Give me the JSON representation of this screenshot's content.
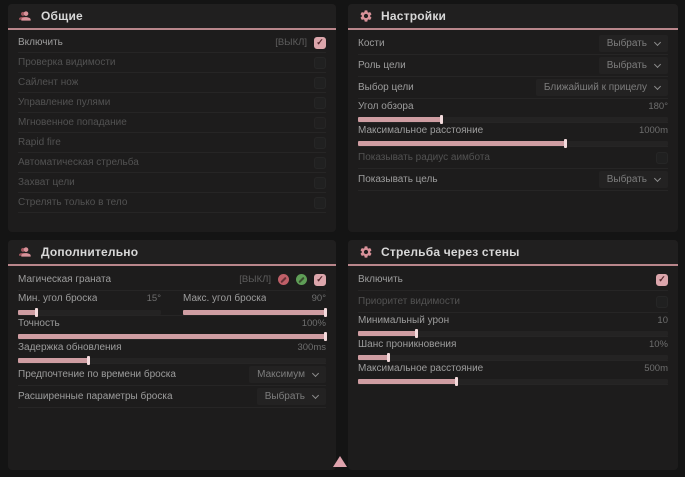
{
  "theme": {
    "accent": "#cf9da2",
    "accent_light": "#f3dadc",
    "header_underline": "#b9868b",
    "panel_bg": "#1d1c1c",
    "page_bg": "#141414",
    "checkbox_checked": "#dca6ac",
    "badge_red": "#c05f68",
    "badge_green": "#5f9e57"
  },
  "icons": {
    "general": "person-icon",
    "settings": "gear-icon",
    "additional": "person-icon",
    "walls": "gear-icon",
    "grenade_badges": [
      "red-circle-icon",
      "green-circle-icon"
    ],
    "bottom": "cursor-triangle-icon"
  },
  "panels": {
    "general": {
      "title": "Общие",
      "rows": [
        {
          "label": "Включить",
          "tag": "[ВЫКЛ]",
          "checked": true
        },
        {
          "label": "Проверка видимости",
          "checked": false
        },
        {
          "label": "Сайлент нож",
          "checked": false
        },
        {
          "label": "Управление пулями",
          "checked": false
        },
        {
          "label": "Мгновенное попадание",
          "checked": false
        },
        {
          "label": "Rapid fire",
          "checked": false
        },
        {
          "label": "Автоматическая стрельба",
          "checked": false
        },
        {
          "label": "Захват цели",
          "checked": false
        },
        {
          "label": "Стрелять только в тело",
          "checked": false
        }
      ]
    },
    "settings": {
      "title": "Настройки",
      "rows": [
        {
          "label": "Кости",
          "dropdown": "Выбрать"
        },
        {
          "label": "Роль цели",
          "dropdown": "Выбрать"
        },
        {
          "label": "Выбор цели",
          "dropdown": "Ближайший к прицелу"
        },
        {
          "label": "Угол обзора",
          "value": "180°",
          "fill_pct": 27
        },
        {
          "label": "Максимальное расстояние",
          "value": "1000m",
          "fill_pct": 67
        },
        {
          "label": "Показывать радиус аимбота",
          "checked": false
        },
        {
          "label": "Показывать цель",
          "dropdown": "Выбрать"
        }
      ]
    },
    "additional": {
      "title": "Дополнительно",
      "rows": [
        {
          "label": "Магическая граната",
          "tag": "[ВЫКЛ]",
          "checked": true
        },
        {
          "label": "Мин. угол броска",
          "value": "15°",
          "fill_pct": 13
        },
        {
          "label": "Макс. угол броска",
          "value": "90°",
          "fill_pct": 100
        },
        {
          "label": "Точность",
          "value": "100%",
          "fill_pct": 100
        },
        {
          "label": "Задержка обновления",
          "value": "300ms",
          "fill_pct": 23
        },
        {
          "label": "Предпочтение по времени броска",
          "dropdown": "Максимум"
        },
        {
          "label": "Расширенные параметры броска",
          "dropdown": "Выбрать"
        }
      ]
    },
    "walls": {
      "title": "Стрельба через стены",
      "rows": [
        {
          "label": "Включить",
          "checked": true
        },
        {
          "label": "Приоритет видимости",
          "checked": false
        },
        {
          "label": "Минимальный урон",
          "value": "10",
          "fill_pct": 19
        },
        {
          "label": "Шанс проникновения",
          "value": "10%",
          "fill_pct": 10
        },
        {
          "label": "Максимальное расстояние",
          "value": "500m",
          "fill_pct": 32
        }
      ]
    }
  }
}
